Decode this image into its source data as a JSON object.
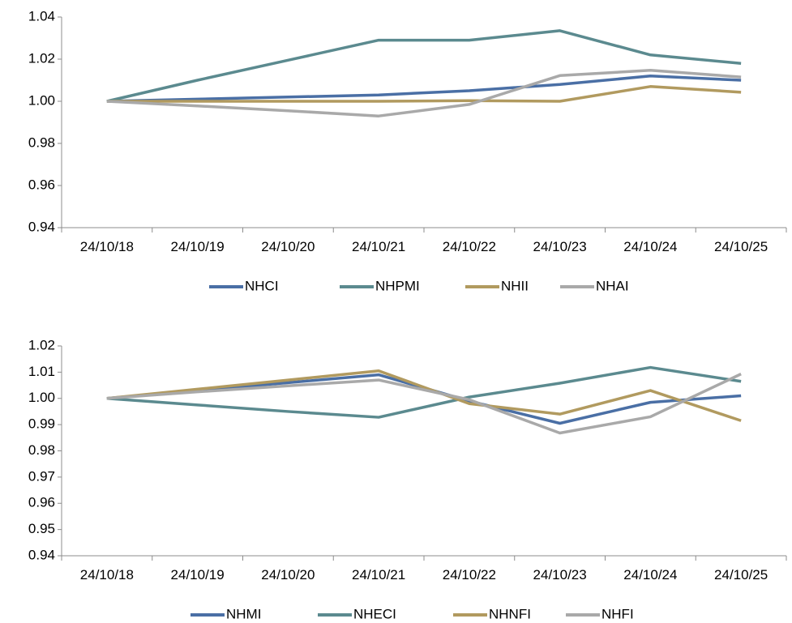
{
  "chart_data": [
    {
      "type": "line",
      "title": "",
      "xlabel": "",
      "ylabel": "",
      "categories": [
        "24/10/18",
        "24/10/19",
        "24/10/20",
        "24/10/21",
        "24/10/22",
        "24/10/23",
        "24/10/24",
        "24/10/25"
      ],
      "ylim": [
        0.94,
        1.04
      ],
      "yticks": [
        "0.94",
        "0.96",
        "0.98",
        "1.00",
        "1.02",
        "1.04"
      ],
      "grid": false,
      "legend_position": "bottom",
      "series": [
        {
          "name": "NHCI",
          "color": "#4a6fa5",
          "values": [
            1.0,
            1.001,
            1.002,
            1.003,
            1.005,
            1.008,
            1.012,
            1.01
          ]
        },
        {
          "name": "NHPMI",
          "color": "#5b8a8f",
          "values": [
            1.0,
            1.01,
            1.0195,
            1.029,
            1.029,
            1.0335,
            1.022,
            1.018
          ]
        },
        {
          "name": "NHII",
          "color": "#b19a5f",
          "values": [
            1.0,
            1.0,
            1.0,
            1.0,
            1.0003,
            1.0,
            1.007,
            1.0043
          ]
        },
        {
          "name": "NHAI",
          "color": "#a9a9a9",
          "values": [
            1.0,
            0.9978,
            0.9955,
            0.993,
            0.9985,
            1.0122,
            1.0147,
            1.0115
          ]
        }
      ]
    },
    {
      "type": "line",
      "title": "",
      "xlabel": "",
      "ylabel": "",
      "categories": [
        "24/10/18",
        "24/10/19",
        "24/10/20",
        "24/10/21",
        "24/10/22",
        "24/10/23",
        "24/10/24",
        "24/10/25"
      ],
      "ylim": [
        0.94,
        1.02
      ],
      "yticks": [
        "0.94",
        "0.95",
        "0.96",
        "0.97",
        "0.98",
        "0.99",
        "1.00",
        "1.01",
        "1.02"
      ],
      "grid": false,
      "legend_position": "bottom",
      "series": [
        {
          "name": "NHMI",
          "color": "#4a6fa5",
          "values": [
            1.0,
            1.003,
            1.006,
            1.009,
            0.999,
            0.9905,
            0.9985,
            1.001
          ]
        },
        {
          "name": "NHECI",
          "color": "#5b8a8f",
          "values": [
            1.0,
            0.9975,
            0.995,
            0.9928,
            1.0005,
            1.0058,
            1.0118,
            1.0065
          ]
        },
        {
          "name": "NHNFI",
          "color": "#b19a5f",
          "values": [
            1.0,
            1.0035,
            1.007,
            1.0105,
            0.998,
            0.994,
            1.003,
            0.9915
          ]
        },
        {
          "name": "NHFI",
          "color": "#a9a9a9",
          "values": [
            1.0,
            1.0025,
            1.0048,
            1.007,
            0.9995,
            0.9868,
            0.993,
            1.0093
          ]
        }
      ]
    }
  ]
}
